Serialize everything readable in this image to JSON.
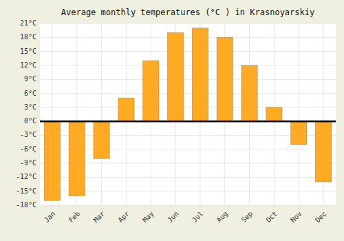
{
  "chart_data": {
    "type": "bar",
    "title": "Average monthly temperatures (°C ) in Krasnoyarskiy",
    "categories": [
      "Jan",
      "Feb",
      "Mar",
      "Apr",
      "May",
      "Jun",
      "Jul",
      "Aug",
      "Sep",
      "Oct",
      "Nov",
      "Dec"
    ],
    "values": [
      -17,
      -16,
      -8,
      5,
      13,
      19,
      20,
      18,
      12,
      3,
      -5,
      -13
    ],
    "color": "#FFAA22",
    "ylim": [
      -18,
      21
    ],
    "yticks": [
      {
        "value": -18,
        "label": "-18°C"
      },
      {
        "value": -15,
        "label": "-15°C"
      },
      {
        "value": -12,
        "label": "-12°C"
      },
      {
        "value": -9,
        "label": "-9°C"
      },
      {
        "value": -6,
        "label": "-6°C"
      },
      {
        "value": -3,
        "label": "-3°C"
      },
      {
        "value": 0,
        "label": "0°C"
      },
      {
        "value": 3,
        "label": "3°C"
      },
      {
        "value": 6,
        "label": "6°C"
      },
      {
        "value": 9,
        "label": "9°C"
      },
      {
        "value": 12,
        "label": "12°C"
      },
      {
        "value": 15,
        "label": "15°C"
      },
      {
        "value": 18,
        "label": "18°C"
      },
      {
        "value": 21,
        "label": "21°C"
      }
    ],
    "grid": true
  }
}
